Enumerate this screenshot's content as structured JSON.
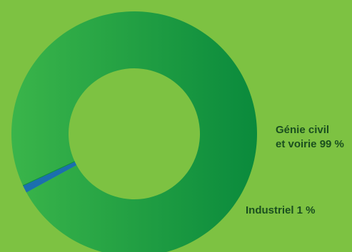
{
  "colors": {
    "background": "#7dc242",
    "label_text": "#1a4f1f",
    "slice_main_light": "#3ab54a",
    "slice_main_dark": "#0a8a3c",
    "slice_minor": "#1b6fae",
    "separator": "#0f8f3f"
  },
  "chart_data": {
    "type": "pie",
    "variant": "donut",
    "labels": [
      "Génie civil et voirie",
      "Industriel"
    ],
    "values": [
      99,
      1
    ],
    "unit": "%",
    "legend": "none",
    "data_labels": [
      {
        "lines": [
          "Génie civil",
          "et voirie 99 %"
        ]
      },
      {
        "lines": [
          "Industriel 1 %"
        ]
      }
    ]
  }
}
